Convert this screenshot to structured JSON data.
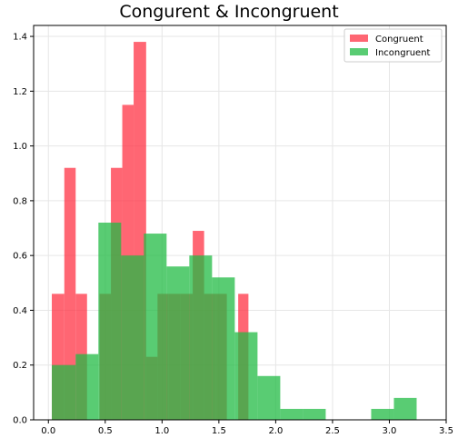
{
  "chart_data": {
    "type": "bar",
    "title": "Congurent & Incongruent",
    "xlabel": "",
    "ylabel": "",
    "xlim": [
      -0.13,
      3.5
    ],
    "ylim": [
      0,
      1.44
    ],
    "xticks": [
      0.0,
      0.5,
      1.0,
      1.5,
      2.0,
      2.5,
      3.0,
      3.5
    ],
    "xtick_labels": [
      "0.0",
      "0.5",
      "1.0",
      "1.5",
      "2.0",
      "2.5",
      "3.0",
      "3.5"
    ],
    "yticks": [
      0.0,
      0.2,
      0.4,
      0.6,
      0.8,
      1.0,
      1.2,
      1.4
    ],
    "ytick_labels": [
      "0.0",
      "0.2",
      "0.4",
      "0.6",
      "0.8",
      "1.0",
      "1.2",
      "1.4"
    ],
    "grid": true,
    "legend_position": "top-right",
    "series": [
      {
        "name": "Congruent",
        "color": "#ff3344",
        "opacity": 0.75,
        "bins": [
          {
            "x0": 0.03,
            "x1": 0.14,
            "y": 0.46
          },
          {
            "x0": 0.14,
            "x1": 0.24,
            "y": 0.92
          },
          {
            "x0": 0.24,
            "x1": 0.34,
            "y": 0.46
          },
          {
            "x0": 0.34,
            "x1": 0.45,
            "y": 0.0
          },
          {
            "x0": 0.45,
            "x1": 0.55,
            "y": 0.46
          },
          {
            "x0": 0.55,
            "x1": 0.65,
            "y": 0.92
          },
          {
            "x0": 0.65,
            "x1": 0.75,
            "y": 1.15
          },
          {
            "x0": 0.75,
            "x1": 0.86,
            "y": 1.38
          },
          {
            "x0": 0.86,
            "x1": 0.96,
            "y": 0.23
          },
          {
            "x0": 0.96,
            "x1": 1.06,
            "y": 0.46
          },
          {
            "x0": 1.06,
            "x1": 1.16,
            "y": 0.46
          },
          {
            "x0": 1.16,
            "x1": 1.27,
            "y": 0.46
          },
          {
            "x0": 1.27,
            "x1": 1.37,
            "y": 0.69
          },
          {
            "x0": 1.37,
            "x1": 1.47,
            "y": 0.46
          },
          {
            "x0": 1.47,
            "x1": 1.57,
            "y": 0.46
          },
          {
            "x0": 1.57,
            "x1": 1.67,
            "y": 0.0
          },
          {
            "x0": 1.67,
            "x1": 1.76,
            "y": 0.46
          }
        ]
      },
      {
        "name": "Incongruent",
        "color": "#22bb44",
        "opacity": 0.75,
        "bins": [
          {
            "x0": 0.03,
            "x1": 0.24,
            "y": 0.2
          },
          {
            "x0": 0.24,
            "x1": 0.44,
            "y": 0.24
          },
          {
            "x0": 0.44,
            "x1": 0.64,
            "y": 0.72
          },
          {
            "x0": 0.64,
            "x1": 0.84,
            "y": 0.6
          },
          {
            "x0": 0.84,
            "x1": 1.04,
            "y": 0.68
          },
          {
            "x0": 1.04,
            "x1": 1.24,
            "y": 0.56
          },
          {
            "x0": 1.24,
            "x1": 1.44,
            "y": 0.6
          },
          {
            "x0": 1.44,
            "x1": 1.64,
            "y": 0.52
          },
          {
            "x0": 1.64,
            "x1": 1.84,
            "y": 0.32
          },
          {
            "x0": 1.84,
            "x1": 2.04,
            "y": 0.16
          },
          {
            "x0": 2.04,
            "x1": 2.24,
            "y": 0.04
          },
          {
            "x0": 2.24,
            "x1": 2.44,
            "y": 0.04
          },
          {
            "x0": 2.44,
            "x1": 2.64,
            "y": 0.0
          },
          {
            "x0": 2.64,
            "x1": 2.84,
            "y": 0.0
          },
          {
            "x0": 2.84,
            "x1": 3.04,
            "y": 0.04
          },
          {
            "x0": 3.04,
            "x1": 3.24,
            "y": 0.08
          }
        ]
      }
    ]
  }
}
